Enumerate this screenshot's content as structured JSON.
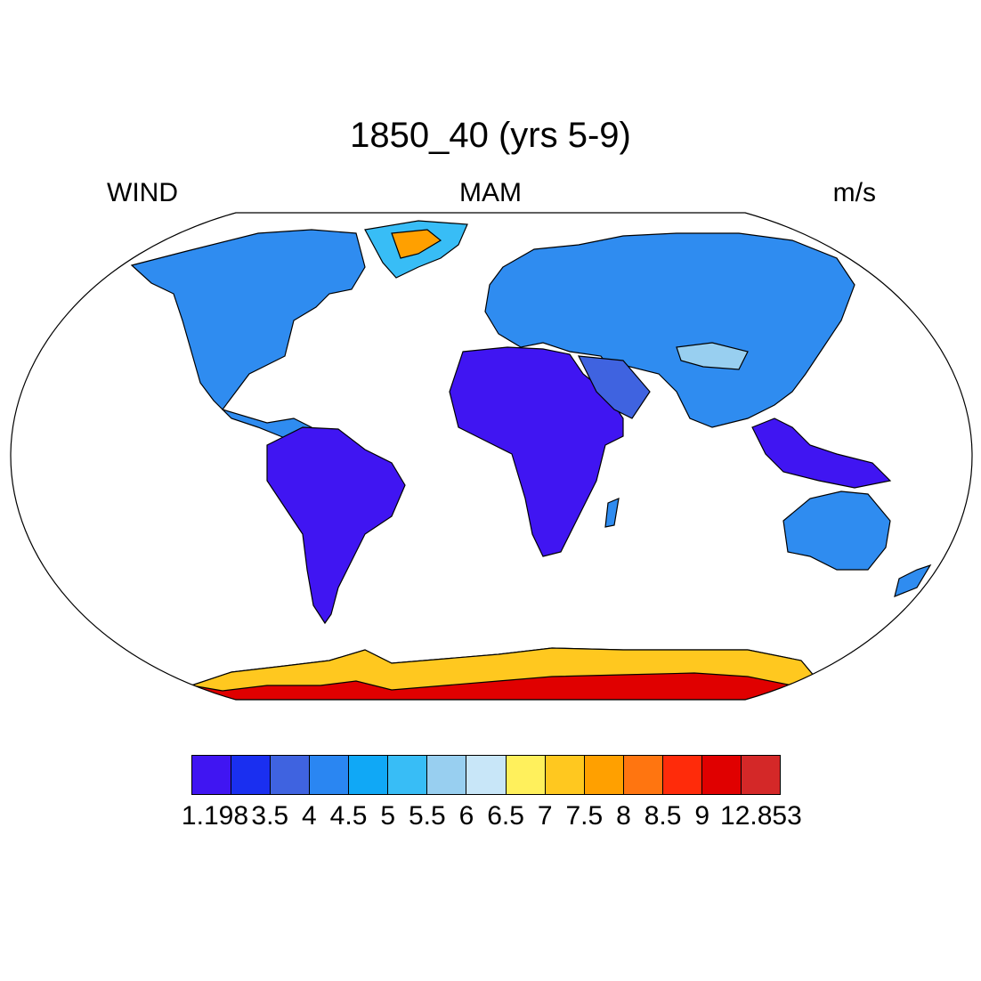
{
  "title": "1850_40 (yrs 5-9)",
  "left_label": "WIND",
  "center_label": "MAM",
  "right_label": "m/s",
  "colorbar": {
    "labels": [
      "1.198",
      "3.5",
      "4",
      "4.5",
      "5",
      "5.5",
      "6",
      "6.5",
      "7",
      "7.5",
      "8",
      "8.5",
      "9",
      "12.853"
    ],
    "colors": [
      "#4015f2",
      "#1a2ff0",
      "#3f63e0",
      "#2a86f2",
      "#10a8f6",
      "#38bdf6",
      "#98cff0",
      "#c8e6f8",
      "#fff05c",
      "#ffc81f",
      "#ffa000",
      "#ff7510",
      "#ff2b0a",
      "#e00000",
      "#d42828"
    ]
  },
  "map_colors": {
    "land_default": "#2f8cf0",
    "tropics": "#4015f2",
    "arid": "#3f63e0",
    "high_plateau": "#98cff0",
    "coast_gust": "#ffa000",
    "antarctica_inner": "#e00000",
    "antarctica_edge": "#ffc81f",
    "greenland": "#38bdf6"
  }
}
